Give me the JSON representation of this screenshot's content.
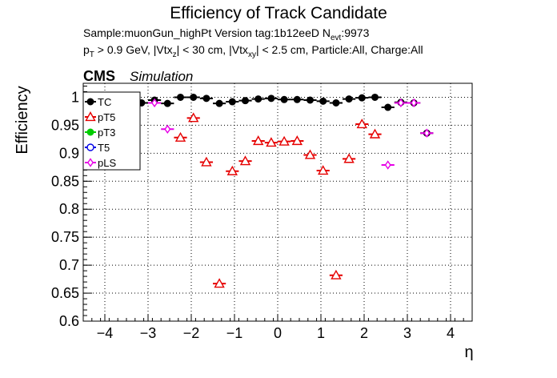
{
  "chart_data": {
    "type": "scatter",
    "title": "Efficiency of Track Candidate",
    "subtitle1": {
      "sample": "Sample:muonGun_highPt   Version tag:1b12eeD  N",
      "sample_sub": "evt",
      "sample_tail": ":9973"
    },
    "subtitle2": {
      "p": "p",
      "p_sub": "T",
      "a": " > 0.9 GeV, |Vtx",
      "a_sub": "z",
      "b": "| < 30 cm, |Vtx",
      "b_sub": "xy",
      "c": "| < 2.5 cm, Particle:All, Charge:All"
    },
    "cms_label": "CMS",
    "simulation_label": "Simulation",
    "xlabel": "η",
    "ylabel": "Efficiency",
    "xlim": [
      -4.5,
      4.5
    ],
    "ylim": [
      0.6,
      1.025
    ],
    "xticks": [
      -4,
      -3,
      -2,
      -1,
      0,
      1,
      2,
      3,
      4
    ],
    "xtick_labels": [
      "−4",
      "−3",
      "−2",
      "−1",
      "0",
      "1",
      "2",
      "3",
      "4"
    ],
    "yticks": [
      0.6,
      0.65,
      0.7,
      0.75,
      0.8,
      0.85,
      0.9,
      0.95,
      1.0
    ],
    "ytick_labels": [
      "0.6",
      "0.65",
      "0.7",
      "0.75",
      "0.8",
      "0.85",
      "0.9",
      "0.95",
      "1"
    ],
    "grid": true,
    "legend_position": "top-left",
    "series": [
      {
        "name": "TC",
        "color": "#000000",
        "marker": "filled-circle",
        "points": [
          {
            "x": -3.15,
            "y": 0.99,
            "xerr": 0.15
          },
          {
            "x": -2.85,
            "y": 0.995,
            "xerr": 0.15
          },
          {
            "x": -2.55,
            "y": 0.989,
            "xerr": 0.15
          },
          {
            "x": -2.25,
            "y": 1.0,
            "xerr": 0.15
          },
          {
            "x": -1.95,
            "y": 1.0,
            "xerr": 0.15
          },
          {
            "x": -1.65,
            "y": 0.998,
            "xerr": 0.15
          },
          {
            "x": -1.35,
            "y": 0.989,
            "xerr": 0.15
          },
          {
            "x": -1.05,
            "y": 0.992,
            "xerr": 0.15
          },
          {
            "x": -0.75,
            "y": 0.994,
            "xerr": 0.15
          },
          {
            "x": -0.45,
            "y": 0.997,
            "xerr": 0.15
          },
          {
            "x": -0.15,
            "y": 0.998,
            "xerr": 0.15
          },
          {
            "x": 0.15,
            "y": 0.996,
            "xerr": 0.15
          },
          {
            "x": 0.45,
            "y": 0.996,
            "xerr": 0.15
          },
          {
            "x": 0.75,
            "y": 0.995,
            "xerr": 0.15
          },
          {
            "x": 1.05,
            "y": 0.993,
            "xerr": 0.15
          },
          {
            "x": 1.35,
            "y": 0.99,
            "xerr": 0.15
          },
          {
            "x": 1.65,
            "y": 0.997,
            "xerr": 0.15
          },
          {
            "x": 1.95,
            "y": 0.999,
            "xerr": 0.15
          },
          {
            "x": 2.25,
            "y": 1.0,
            "xerr": 0.15
          },
          {
            "x": 2.55,
            "y": 0.982,
            "xerr": 0.15
          },
          {
            "x": 2.85,
            "y": 0.991,
            "xerr": 0.15
          },
          {
            "x": 3.15,
            "y": 0.99,
            "xerr": 0.15
          },
          {
            "x": 3.45,
            "y": 0.936,
            "xerr": 0.15
          }
        ]
      },
      {
        "name": "pT5",
        "color": "#e60000",
        "marker": "open-triangle",
        "points": [
          {
            "x": -1.95,
            "y": 0.963,
            "xerr": 0.15
          },
          {
            "x": -1.65,
            "y": 0.884,
            "xerr": 0.15
          },
          {
            "x": -1.35,
            "y": 0.667,
            "xerr": 0.15
          },
          {
            "x": -1.05,
            "y": 0.868,
            "xerr": 0.15
          },
          {
            "x": -0.75,
            "y": 0.886,
            "xerr": 0.15
          },
          {
            "x": -0.45,
            "y": 0.922,
            "xerr": 0.15
          },
          {
            "x": -0.15,
            "y": 0.919,
            "xerr": 0.15
          },
          {
            "x": 0.15,
            "y": 0.921,
            "xerr": 0.15
          },
          {
            "x": 0.45,
            "y": 0.922,
            "xerr": 0.15
          },
          {
            "x": 0.75,
            "y": 0.897,
            "xerr": 0.15
          },
          {
            "x": 1.05,
            "y": 0.869,
            "xerr": 0.15
          },
          {
            "x": 1.35,
            "y": 0.682,
            "xerr": 0.15
          },
          {
            "x": 1.65,
            "y": 0.89,
            "xerr": 0.15
          },
          {
            "x": 1.95,
            "y": 0.952,
            "xerr": 0.15
          },
          {
            "x": 2.25,
            "y": 0.934,
            "xerr": 0.15
          },
          {
            "x": -2.25,
            "y": 0.928,
            "xerr": 0.15
          }
        ]
      },
      {
        "name": "pT3",
        "color": "#00cc00",
        "marker": "filled-circle",
        "points": []
      },
      {
        "name": "T5",
        "color": "#0000e6",
        "marker": "open-circle",
        "points": []
      },
      {
        "name": "pLS",
        "color": "#e600e6",
        "marker": "open-diamond",
        "points": [
          {
            "x": -2.85,
            "y": 0.99,
            "xerr": 0.15
          },
          {
            "x": -2.55,
            "y": 0.943,
            "xerr": 0.15
          },
          {
            "x": 2.55,
            "y": 0.879,
            "xerr": 0.15
          },
          {
            "x": 2.85,
            "y": 0.99,
            "xerr": 0.15
          },
          {
            "x": 3.15,
            "y": 0.99,
            "xerr": 0.15
          },
          {
            "x": 3.45,
            "y": 0.936,
            "xerr": 0.15
          }
        ]
      }
    ]
  }
}
